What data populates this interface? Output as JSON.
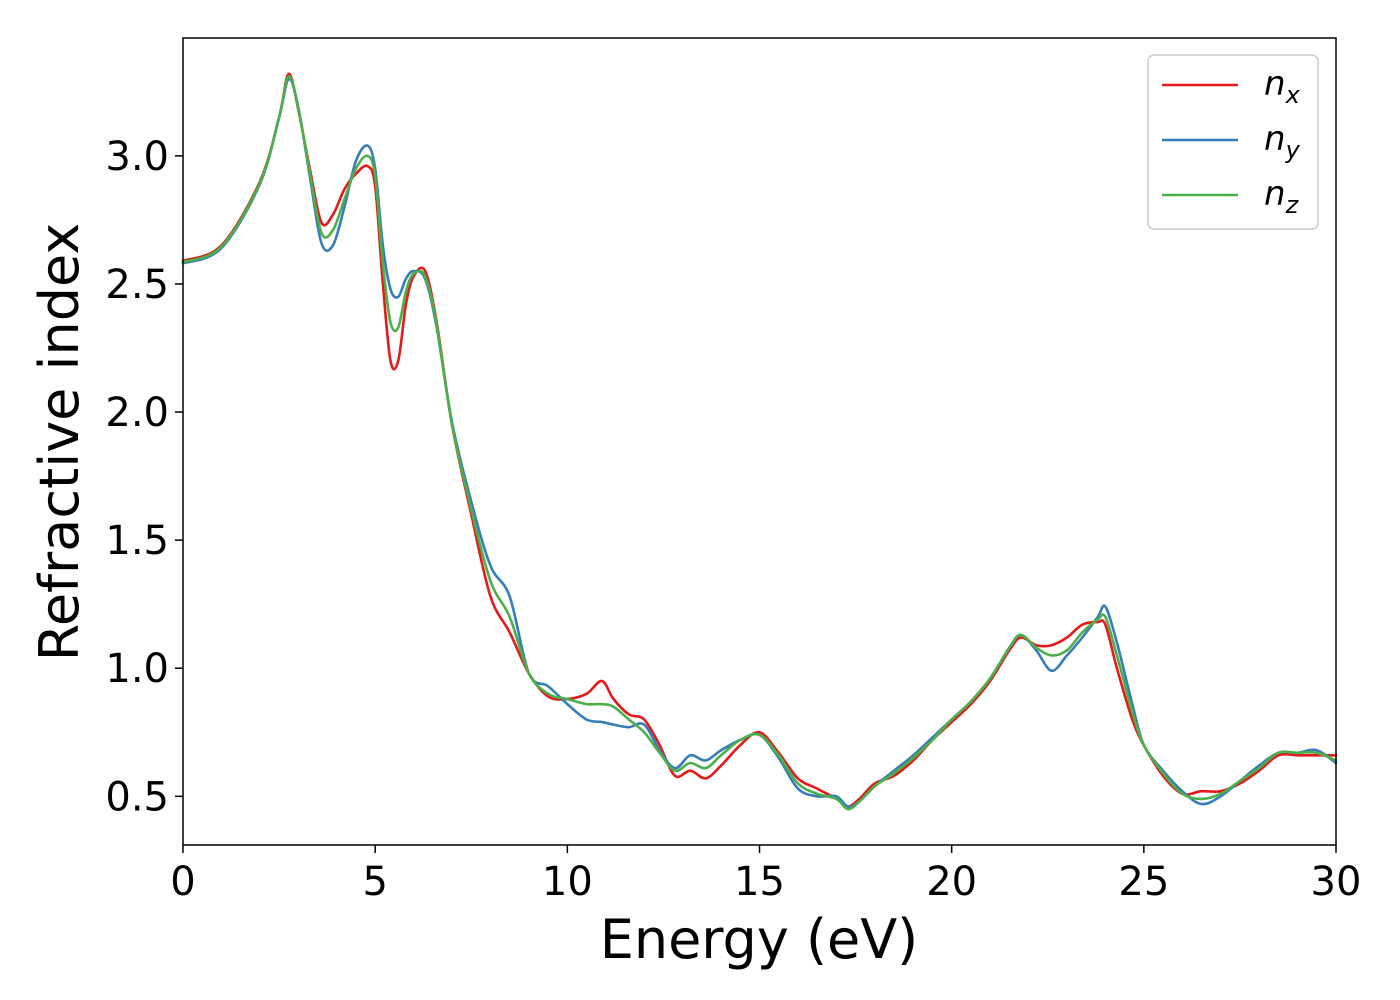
{
  "chart_data": {
    "type": "line",
    "xlabel": "Energy (eV)",
    "ylabel": "Refractive index",
    "xlim": [
      0,
      30
    ],
    "ylim": [
      0.31,
      3.46
    ],
    "xticks": [
      "0",
      "5",
      "10",
      "15",
      "20",
      "25",
      "30"
    ],
    "yticks": [
      "0.5",
      "1.0",
      "1.5",
      "2.0",
      "2.5",
      "3.0"
    ],
    "grid": false,
    "legend_position": "top-right",
    "series": [
      {
        "name": "n",
        "subscript": "x",
        "color": "#e41a1c",
        "x": [
          0,
          1,
          2,
          2.5,
          2.75,
          3.0,
          3.3,
          3.6,
          3.9,
          4.2,
          4.5,
          4.8,
          5.0,
          5.2,
          5.4,
          5.6,
          5.8,
          6.0,
          6.3,
          6.6,
          7.0,
          7.5,
          8.0,
          8.5,
          9.0,
          9.5,
          10.0,
          10.5,
          10.9,
          11.2,
          11.6,
          12.0,
          12.4,
          12.8,
          13.2,
          13.6,
          14.0,
          14.5,
          15.0,
          15.5,
          16.0,
          16.5,
          17.0,
          17.3,
          17.6,
          18.0,
          18.5,
          19.0,
          19.5,
          20.0,
          20.5,
          21.0,
          21.5,
          21.8,
          22.2,
          22.6,
          23.0,
          23.4,
          23.8,
          24.0,
          24.3,
          24.7,
          25.0,
          25.5,
          26.0,
          26.5,
          27.0,
          27.5,
          28.0,
          28.5,
          29.0,
          29.5,
          30.0
        ],
        "y": [
          2.59,
          2.65,
          2.9,
          3.15,
          3.32,
          3.18,
          2.95,
          2.74,
          2.77,
          2.87,
          2.93,
          2.96,
          2.88,
          2.5,
          2.2,
          2.2,
          2.42,
          2.53,
          2.55,
          2.35,
          1.95,
          1.6,
          1.28,
          1.14,
          0.98,
          0.89,
          0.88,
          0.9,
          0.95,
          0.88,
          0.82,
          0.8,
          0.7,
          0.58,
          0.6,
          0.57,
          0.62,
          0.7,
          0.75,
          0.67,
          0.57,
          0.53,
          0.49,
          0.46,
          0.49,
          0.55,
          0.58,
          0.64,
          0.72,
          0.79,
          0.86,
          0.95,
          1.07,
          1.12,
          1.09,
          1.09,
          1.12,
          1.17,
          1.18,
          1.17,
          1.0,
          0.8,
          0.7,
          0.58,
          0.51,
          0.52,
          0.52,
          0.55,
          0.6,
          0.66,
          0.66,
          0.66,
          0.66
        ]
      },
      {
        "name": "n",
        "subscript": "y",
        "color": "#377eb8",
        "x": [
          0,
          1,
          2,
          2.5,
          2.75,
          3.0,
          3.3,
          3.6,
          3.9,
          4.2,
          4.5,
          4.8,
          5.0,
          5.2,
          5.4,
          5.6,
          5.8,
          6.0,
          6.3,
          6.6,
          7.0,
          7.5,
          8.0,
          8.5,
          9.0,
          9.5,
          10.0,
          10.5,
          10.9,
          11.2,
          11.6,
          12.0,
          12.4,
          12.8,
          13.2,
          13.6,
          14.0,
          14.5,
          15.0,
          15.5,
          16.0,
          16.5,
          17.0,
          17.3,
          17.6,
          18.0,
          18.5,
          19.0,
          19.5,
          20.0,
          20.5,
          21.0,
          21.5,
          21.8,
          22.2,
          22.6,
          23.0,
          23.4,
          23.8,
          24.0,
          24.3,
          24.7,
          25.0,
          25.5,
          26.0,
          26.5,
          27.0,
          27.5,
          28.0,
          28.5,
          29.0,
          29.5,
          30.0
        ],
        "y": [
          2.58,
          2.64,
          2.89,
          3.15,
          3.3,
          3.19,
          2.92,
          2.66,
          2.65,
          2.8,
          2.98,
          3.04,
          2.95,
          2.65,
          2.48,
          2.45,
          2.52,
          2.55,
          2.52,
          2.33,
          1.96,
          1.65,
          1.4,
          1.28,
          0.98,
          0.93,
          0.86,
          0.8,
          0.79,
          0.78,
          0.77,
          0.78,
          0.68,
          0.61,
          0.66,
          0.64,
          0.68,
          0.72,
          0.74,
          0.65,
          0.53,
          0.5,
          0.5,
          0.46,
          0.48,
          0.54,
          0.6,
          0.66,
          0.73,
          0.8,
          0.87,
          0.96,
          1.08,
          1.13,
          1.07,
          0.99,
          1.05,
          1.12,
          1.2,
          1.24,
          1.1,
          0.86,
          0.7,
          0.6,
          0.52,
          0.47,
          0.5,
          0.56,
          0.62,
          0.67,
          0.67,
          0.68,
          0.63
        ]
      },
      {
        "name": "n",
        "subscript": "z",
        "color": "#4daf4a",
        "x": [
          0,
          1,
          2,
          2.5,
          2.75,
          3.0,
          3.3,
          3.6,
          3.9,
          4.2,
          4.5,
          4.8,
          5.0,
          5.2,
          5.4,
          5.6,
          5.8,
          6.0,
          6.3,
          6.6,
          7.0,
          7.5,
          8.0,
          8.5,
          9.0,
          9.5,
          10.0,
          10.5,
          10.9,
          11.2,
          11.6,
          12.0,
          12.4,
          12.8,
          13.2,
          13.6,
          14.0,
          14.5,
          15.0,
          15.5,
          16.0,
          16.5,
          17.0,
          17.3,
          17.6,
          18.0,
          18.5,
          19.0,
          19.5,
          20.0,
          20.5,
          21.0,
          21.5,
          21.8,
          22.2,
          22.6,
          23.0,
          23.4,
          23.8,
          24.0,
          24.3,
          24.7,
          25.0,
          25.5,
          26.0,
          26.5,
          27.0,
          27.5,
          28.0,
          28.5,
          29.0,
          29.5,
          30.0
        ],
        "y": [
          2.585,
          2.645,
          2.895,
          3.15,
          3.31,
          3.185,
          2.935,
          2.7,
          2.71,
          2.83,
          2.95,
          3.0,
          2.92,
          2.58,
          2.35,
          2.33,
          2.47,
          2.54,
          2.53,
          2.34,
          1.95,
          1.62,
          1.34,
          1.2,
          0.98,
          0.9,
          0.88,
          0.86,
          0.86,
          0.85,
          0.8,
          0.75,
          0.67,
          0.6,
          0.63,
          0.61,
          0.66,
          0.72,
          0.74,
          0.66,
          0.55,
          0.51,
          0.49,
          0.45,
          0.48,
          0.54,
          0.59,
          0.65,
          0.72,
          0.8,
          0.87,
          0.96,
          1.08,
          1.13,
          1.08,
          1.05,
          1.07,
          1.14,
          1.19,
          1.2,
          1.05,
          0.83,
          0.7,
          0.59,
          0.51,
          0.49,
          0.51,
          0.56,
          0.61,
          0.67,
          0.67,
          0.67,
          0.64
        ]
      }
    ]
  }
}
